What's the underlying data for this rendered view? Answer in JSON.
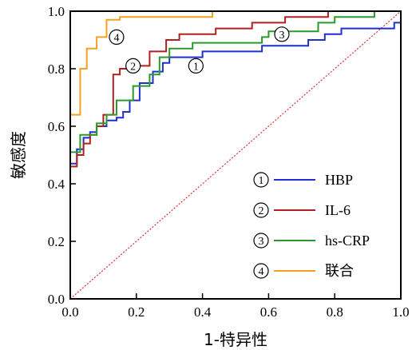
{
  "chart_data": {
    "type": "line",
    "title": "",
    "xlabel": "1-特异性",
    "ylabel": "敏感度",
    "xlim": [
      0,
      1
    ],
    "ylim": [
      0,
      1
    ],
    "xticks": [
      "0.0",
      "0.2",
      "0.4",
      "0.6",
      "0.8",
      "1.0"
    ],
    "yticks": [
      "0.0",
      "0.2",
      "0.4",
      "0.6",
      "0.8",
      "1.0"
    ],
    "reference_line": {
      "x": [
        0,
        1
      ],
      "y": [
        0,
        1
      ],
      "color": "#e03030",
      "style": "dotted"
    },
    "legend_position": "bottom-right",
    "series": [
      {
        "name": "HBP",
        "marker": "①",
        "color": "#1f2fd0",
        "label_at": [
          0.38,
          0.81
        ],
        "points": [
          [
            0,
            0
          ],
          [
            0,
            0.47
          ],
          [
            0.02,
            0.47
          ],
          [
            0.02,
            0.52
          ],
          [
            0.04,
            0.52
          ],
          [
            0.04,
            0.56
          ],
          [
            0.06,
            0.56
          ],
          [
            0.06,
            0.58
          ],
          [
            0.08,
            0.58
          ],
          [
            0.08,
            0.6
          ],
          [
            0.11,
            0.6
          ],
          [
            0.11,
            0.62
          ],
          [
            0.14,
            0.62
          ],
          [
            0.14,
            0.63
          ],
          [
            0.16,
            0.63
          ],
          [
            0.16,
            0.65
          ],
          [
            0.18,
            0.65
          ],
          [
            0.18,
            0.69
          ],
          [
            0.21,
            0.69
          ],
          [
            0.21,
            0.75
          ],
          [
            0.25,
            0.75
          ],
          [
            0.25,
            0.79
          ],
          [
            0.28,
            0.79
          ],
          [
            0.28,
            0.82
          ],
          [
            0.3,
            0.82
          ],
          [
            0.3,
            0.84
          ],
          [
            0.4,
            0.84
          ],
          [
            0.4,
            0.86
          ],
          [
            0.58,
            0.86
          ],
          [
            0.58,
            0.88
          ],
          [
            0.72,
            0.88
          ],
          [
            0.72,
            0.9
          ],
          [
            0.77,
            0.9
          ],
          [
            0.77,
            0.92
          ],
          [
            0.82,
            0.92
          ],
          [
            0.82,
            0.94
          ],
          [
            0.98,
            0.94
          ],
          [
            0.98,
            0.96
          ],
          [
            1,
            0.96
          ],
          [
            1,
            1
          ]
        ]
      },
      {
        "name": "IL-6",
        "marker": "②",
        "color": "#b02020",
        "label_at": [
          0.19,
          0.81
        ],
        "points": [
          [
            0,
            0
          ],
          [
            0,
            0.46
          ],
          [
            0.02,
            0.46
          ],
          [
            0.02,
            0.5
          ],
          [
            0.04,
            0.5
          ],
          [
            0.04,
            0.54
          ],
          [
            0.06,
            0.54
          ],
          [
            0.06,
            0.57
          ],
          [
            0.08,
            0.57
          ],
          [
            0.08,
            0.6
          ],
          [
            0.1,
            0.6
          ],
          [
            0.1,
            0.64
          ],
          [
            0.13,
            0.64
          ],
          [
            0.13,
            0.78
          ],
          [
            0.15,
            0.78
          ],
          [
            0.15,
            0.8
          ],
          [
            0.2,
            0.8
          ],
          [
            0.2,
            0.81
          ],
          [
            0.24,
            0.81
          ],
          [
            0.24,
            0.86
          ],
          [
            0.29,
            0.86
          ],
          [
            0.29,
            0.9
          ],
          [
            0.33,
            0.9
          ],
          [
            0.33,
            0.92
          ],
          [
            0.44,
            0.92
          ],
          [
            0.44,
            0.94
          ],
          [
            0.55,
            0.94
          ],
          [
            0.55,
            0.96
          ],
          [
            0.65,
            0.96
          ],
          [
            0.65,
            0.98
          ],
          [
            0.78,
            0.98
          ],
          [
            0.78,
            1
          ],
          [
            1,
            1
          ]
        ]
      },
      {
        "name": "hs-CRP",
        "marker": "③",
        "color": "#2a9a2a",
        "label_at": [
          0.64,
          0.92
        ],
        "points": [
          [
            0,
            0
          ],
          [
            0,
            0.51
          ],
          [
            0.03,
            0.51
          ],
          [
            0.03,
            0.57
          ],
          [
            0.08,
            0.57
          ],
          [
            0.08,
            0.61
          ],
          [
            0.11,
            0.61
          ],
          [
            0.11,
            0.64
          ],
          [
            0.14,
            0.64
          ],
          [
            0.14,
            0.69
          ],
          [
            0.19,
            0.69
          ],
          [
            0.19,
            0.74
          ],
          [
            0.24,
            0.74
          ],
          [
            0.24,
            0.78
          ],
          [
            0.27,
            0.78
          ],
          [
            0.27,
            0.84
          ],
          [
            0.3,
            0.84
          ],
          [
            0.3,
            0.87
          ],
          [
            0.37,
            0.87
          ],
          [
            0.37,
            0.89
          ],
          [
            0.58,
            0.89
          ],
          [
            0.58,
            0.91
          ],
          [
            0.6,
            0.91
          ],
          [
            0.6,
            0.93
          ],
          [
            0.75,
            0.93
          ],
          [
            0.75,
            0.96
          ],
          [
            0.8,
            0.96
          ],
          [
            0.8,
            0.98
          ],
          [
            0.92,
            0.98
          ],
          [
            0.92,
            1
          ],
          [
            1,
            1
          ]
        ]
      },
      {
        "name": "联合",
        "marker": "④",
        "color": "#f5a020",
        "label_at": [
          0.14,
          0.91
        ],
        "points": [
          [
            0,
            0
          ],
          [
            0,
            0.64
          ],
          [
            0.03,
            0.64
          ],
          [
            0.03,
            0.8
          ],
          [
            0.05,
            0.8
          ],
          [
            0.05,
            0.87
          ],
          [
            0.08,
            0.87
          ],
          [
            0.08,
            0.91
          ],
          [
            0.11,
            0.91
          ],
          [
            0.11,
            0.97
          ],
          [
            0.15,
            0.97
          ],
          [
            0.15,
            0.98
          ],
          [
            0.43,
            0.98
          ],
          [
            0.43,
            1
          ],
          [
            1,
            1
          ]
        ]
      }
    ]
  }
}
